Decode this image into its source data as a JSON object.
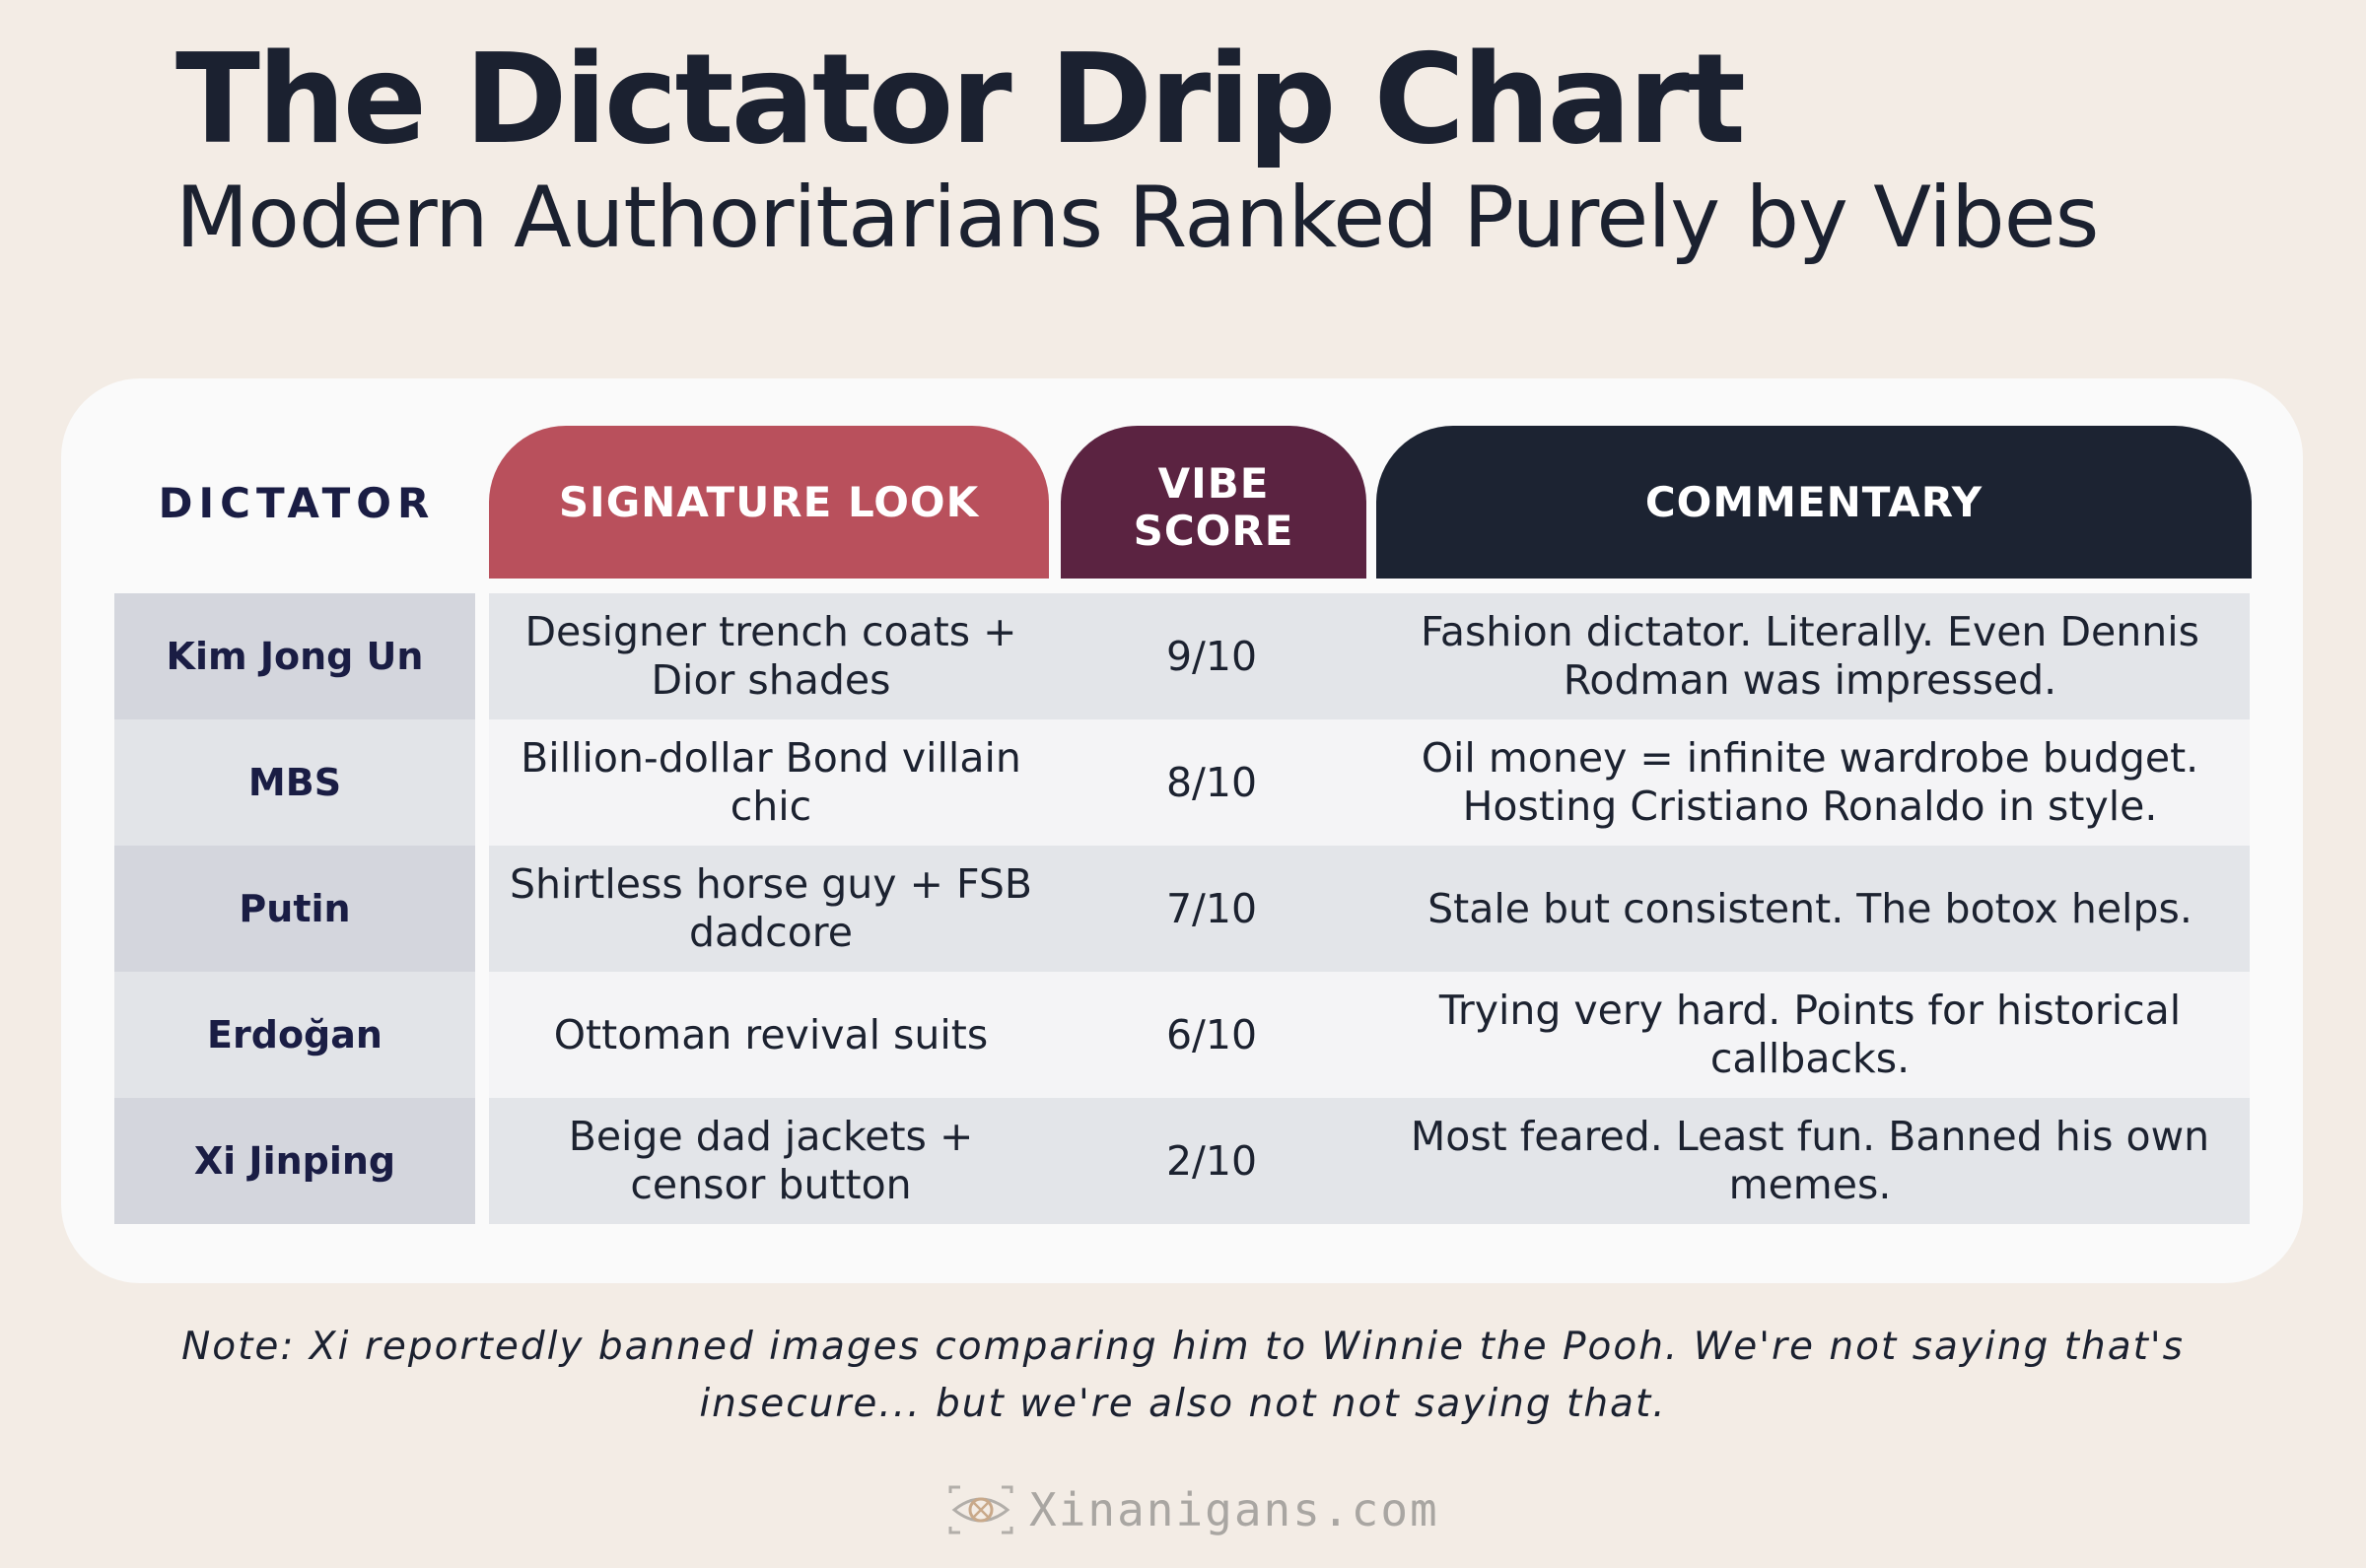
{
  "title": "The Dictator Drip Chart",
  "subtitle": "Modern Authoritarians Ranked Purely by Vibes",
  "table": {
    "headers": {
      "dictator": "DICTATOR",
      "look": "SIGNATURE LOOK",
      "score_line1": "VIBE",
      "score_line2": "SCORE",
      "commentary": "COMMENTARY"
    },
    "rows": [
      {
        "name": "Kim Jong Un",
        "look": "Designer trench coats + Dior shades",
        "score": "9/10",
        "commentary": "Fashion dictator. Literally. Even Dennis Rodman was impressed."
      },
      {
        "name": "MBS",
        "look": "Billion-dollar Bond villain chic",
        "score": "8/10",
        "commentary": "Oil money = infinite wardrobe budget. Hosting Cristiano Ronaldo in style."
      },
      {
        "name": "Putin",
        "look": "Shirtless horse guy + FSB dadcore",
        "score": "7/10",
        "commentary": "Stale but consistent. The botox helps."
      },
      {
        "name": "Erdoğan",
        "look": "Ottoman revival suits",
        "score": "6/10",
        "commentary": "Trying very hard. Points for historical callbacks."
      },
      {
        "name": "Xi Jinping",
        "look": "Beige dad jackets + censor button",
        "score": "2/10",
        "commentary": "Most feared. Least fun. Banned his own memes."
      }
    ]
  },
  "note": "Note: Xi reportedly banned images comparing him to Winnie the Pooh. We're not saying that's insecure... but we're also not not saying that.",
  "brand": {
    "text": "Xinanigans.com",
    "icon": "eye-logo-icon"
  },
  "colors": {
    "look_header": "#b9505c",
    "score_header": "#5b2341",
    "commentary_header": "#1c2332",
    "background": "#f3ece5"
  }
}
